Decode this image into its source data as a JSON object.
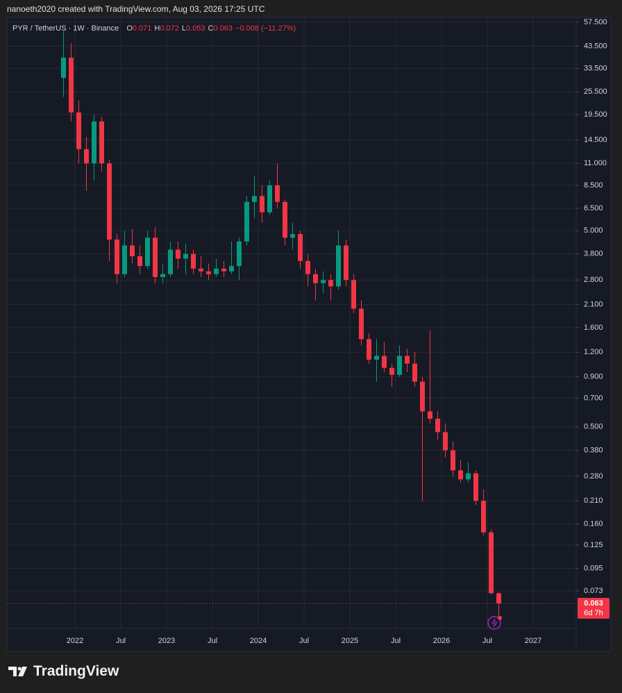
{
  "header": {
    "text": "nanoeth2020 created with TradingView.com, Aug 03, 2026 17:25 UTC"
  },
  "footer": {
    "logo": "TradingView"
  },
  "chart_data": {
    "type": "candlestick",
    "title": "PYR / TetherUS · 1W · Binance",
    "legend": {
      "labels": [
        "O",
        "H",
        "L",
        "C"
      ],
      "values": [
        0.071,
        0.072,
        0.053,
        0.063
      ],
      "change": "−0.008 (−11.27%)"
    },
    "x": [
      "2021-11",
      "2021-12",
      "2022-01",
      "2022-02",
      "2022-03",
      "2022-04",
      "2022-05",
      "2022-06",
      "2022-07",
      "2022-08",
      "2022-09",
      "2022-10",
      "2022-11",
      "2022-12",
      "2023-01",
      "2023-02",
      "2023-03",
      "2023-04",
      "2023-05",
      "2023-06",
      "2023-07",
      "2023-08",
      "2023-09",
      "2023-10",
      "2023-11",
      "2023-12",
      "2024-01",
      "2024-02",
      "2024-03",
      "2024-04",
      "2024-05",
      "2024-06",
      "2024-07",
      "2024-08",
      "2024-09",
      "2024-10",
      "2024-11",
      "2024-12",
      "2025-01",
      "2025-02",
      "2025-03",
      "2025-04",
      "2025-05",
      "2025-06",
      "2025-07",
      "2025-08",
      "2025-09",
      "2025-10",
      "2025-11",
      "2025-12",
      "2026-01",
      "2026-02",
      "2026-03",
      "2026-04",
      "2026-05",
      "2026-06",
      "2026-07",
      "2026-08"
    ],
    "open": [
      30,
      38,
      20,
      13,
      11,
      18,
      11,
      4.5,
      3.0,
      4.2,
      3.7,
      3.3,
      4.6,
      2.9,
      3.0,
      4.0,
      3.6,
      3.8,
      3.2,
      3.1,
      3.0,
      3.2,
      3.1,
      3.3,
      4.4,
      7.0,
      7.5,
      6.2,
      8.5,
      7.0,
      4.6,
      4.8,
      3.5,
      3.0,
      2.7,
      2.8,
      2.6,
      4.2,
      2.8,
      2.0,
      1.4,
      1.1,
      1.15,
      1.0,
      0.92,
      1.15,
      1.05,
      0.85,
      0.6,
      0.55,
      0.47,
      0.38,
      0.3,
      0.27,
      0.29,
      0.21,
      0.145,
      0.071
    ],
    "high": [
      52,
      45,
      23,
      15,
      19.5,
      19,
      11.5,
      4.8,
      5.0,
      5.1,
      4.2,
      5.0,
      5.2,
      3.4,
      4.4,
      4.4,
      4.3,
      4.0,
      3.7,
      3.4,
      3.6,
      3.5,
      4.4,
      4.6,
      7.5,
      9.5,
      8.5,
      9.0,
      11,
      7.2,
      5.5,
      5.0,
      3.8,
      3.2,
      3.1,
      3.0,
      5.0,
      4.5,
      3.0,
      2.2,
      1.5,
      1.4,
      1.35,
      1.05,
      1.3,
      1.25,
      1.2,
      0.9,
      1.55,
      0.6,
      0.52,
      0.42,
      0.34,
      0.33,
      0.3,
      0.24,
      0.15,
      0.072
    ],
    "low": [
      24,
      18,
      11,
      8,
      9,
      10,
      3.5,
      2.7,
      2.9,
      3.4,
      3.0,
      3.2,
      2.7,
      2.7,
      2.9,
      3.2,
      3.0,
      3.0,
      2.9,
      2.8,
      2.9,
      2.9,
      3.0,
      2.8,
      4.2,
      5.8,
      5.5,
      6.0,
      6.5,
      4.2,
      4.0,
      3.2,
      2.6,
      2.2,
      2.4,
      2.2,
      2.5,
      2.6,
      1.9,
      1.3,
      1.05,
      0.85,
      0.95,
      0.8,
      0.9,
      0.95,
      0.8,
      0.21,
      0.52,
      0.43,
      0.35,
      0.28,
      0.26,
      0.26,
      0.2,
      0.14,
      0.07,
      0.053
    ],
    "close": [
      38,
      20,
      13,
      11,
      18,
      11,
      4.5,
      3.0,
      4.2,
      3.7,
      3.3,
      4.6,
      2.9,
      3.0,
      4.0,
      3.6,
      3.8,
      3.2,
      3.1,
      3.0,
      3.2,
      3.1,
      3.3,
      4.4,
      7.0,
      7.5,
      6.2,
      8.5,
      7.0,
      4.6,
      4.8,
      3.5,
      3.0,
      2.7,
      2.8,
      2.6,
      4.2,
      2.8,
      2.0,
      1.4,
      1.1,
      1.15,
      1.0,
      0.92,
      1.15,
      1.05,
      0.85,
      0.6,
      0.55,
      0.47,
      0.38,
      0.3,
      0.27,
      0.29,
      0.21,
      0.145,
      0.071,
      0.063
    ],
    "up_color": "#089981",
    "down_color": "#f23645",
    "log_y": true,
    "grid": true,
    "ylim": [
      0.047,
      61
    ],
    "yticks": [
      {
        "value": 57.5,
        "label": "57.500"
      },
      {
        "value": 43.5,
        "label": "43.500"
      },
      {
        "value": 33.5,
        "label": "33.500"
      },
      {
        "value": 25.5,
        "label": "25.500"
      },
      {
        "value": 19.5,
        "label": "19.500"
      },
      {
        "value": 14.5,
        "label": "14.500"
      },
      {
        "value": 11,
        "label": "11.000"
      },
      {
        "value": 8.5,
        "label": "8.500"
      },
      {
        "value": 6.5,
        "label": "6.500"
      },
      {
        "value": 5,
        "label": "5.000"
      },
      {
        "value": 3.8,
        "label": "3.800"
      },
      {
        "value": 2.8,
        "label": "2.800"
      },
      {
        "value": 2.1,
        "label": "2.100"
      },
      {
        "value": 1.6,
        "label": "1.600"
      },
      {
        "value": 1.2,
        "label": "1.200"
      },
      {
        "value": 0.9,
        "label": "0.900"
      },
      {
        "value": 0.7,
        "label": "0.700"
      },
      {
        "value": 0.5,
        "label": "0.500"
      },
      {
        "value": 0.38,
        "label": "0.380"
      },
      {
        "value": 0.28,
        "label": "0.280"
      },
      {
        "value": 0.21,
        "label": "0.210"
      },
      {
        "value": 0.16,
        "label": "0.160"
      },
      0.125,
      0.095,
      0.073
    ],
    "xlim": [
      "2021-04",
      "2027-06"
    ],
    "xticks": [
      {
        "value": "2022-01",
        "label": "2022"
      },
      {
        "value": "2022-07",
        "label": "Jul"
      },
      {
        "value": "2023-01",
        "label": "2023"
      },
      {
        "value": "2023-07",
        "label": "Jul"
      },
      {
        "value": "2024-01",
        "label": "2024"
      },
      {
        "value": "2024-07",
        "label": "Jul"
      },
      {
        "value": "2025-01",
        "label": "2025"
      },
      {
        "value": "2025-07",
        "label": "Jul"
      },
      {
        "value": "2026-01",
        "label": "2026"
      },
      {
        "value": "2026-07",
        "label": "Jul"
      },
      {
        "value": "2027-01",
        "label": "2027"
      }
    ],
    "last_price": 0.063,
    "countdown": "6d 7h"
  }
}
